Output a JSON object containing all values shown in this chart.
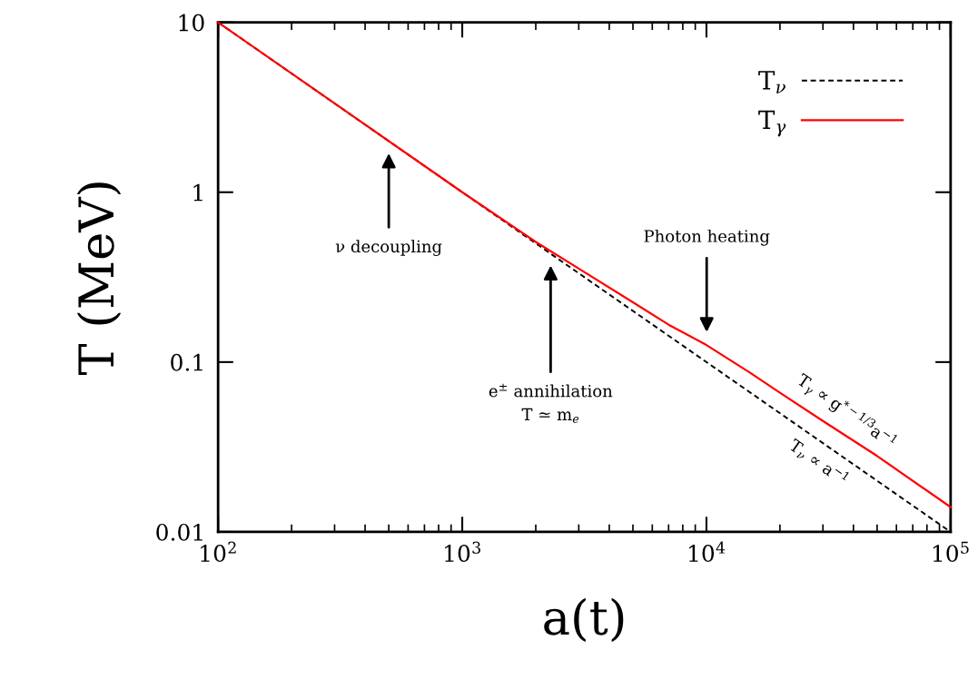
{
  "chart_data": {
    "type": "line",
    "xlabel": "a(t)",
    "ylabel": "T (MeV)",
    "log": "xy",
    "xlim": [
      100,
      100000
    ],
    "ylim": [
      0.01,
      10
    ],
    "xticks": [
      {
        "value": 100,
        "label": "10$^{2}$"
      },
      {
        "value": 1000,
        "label": "10$^{3}$"
      },
      {
        "value": 10000,
        "label": "10$^{4}$"
      },
      {
        "value": 100000,
        "label": "10$^{5}$"
      }
    ],
    "yticks": [
      0.01,
      0.1,
      1,
      10
    ],
    "legend": "top right",
    "grid": false,
    "series": [
      {
        "name": "T$_{ν}$",
        "color": "#000000",
        "line_style": "dashed",
        "x": [
          100,
          100000
        ],
        "values": [
          10,
          0.01
        ]
      },
      {
        "name": "T$_{γ}$",
        "color": "#ff0000",
        "line_style": "solid",
        "x": [
          100,
          300,
          1000,
          2000,
          3000,
          5000,
          7000,
          10000,
          15000,
          20000,
          30000,
          50000,
          100000
        ],
        "values": [
          10,
          3.333,
          1.0,
          0.51,
          0.355,
          0.225,
          0.166,
          0.126,
          0.087,
          0.066,
          0.045,
          0.028,
          0.014
        ]
      }
    ],
    "annotations": [
      "ν decoupling",
      "e$^{±}$ annihilation\nT ≃ m$_{e}$",
      "Photon heating",
      "T$_{γ}$ ∝ g$^{*−1/3}$a$^{−1}$",
      "T$_{ν}$ ∝ a$^{−1}$"
    ]
  }
}
